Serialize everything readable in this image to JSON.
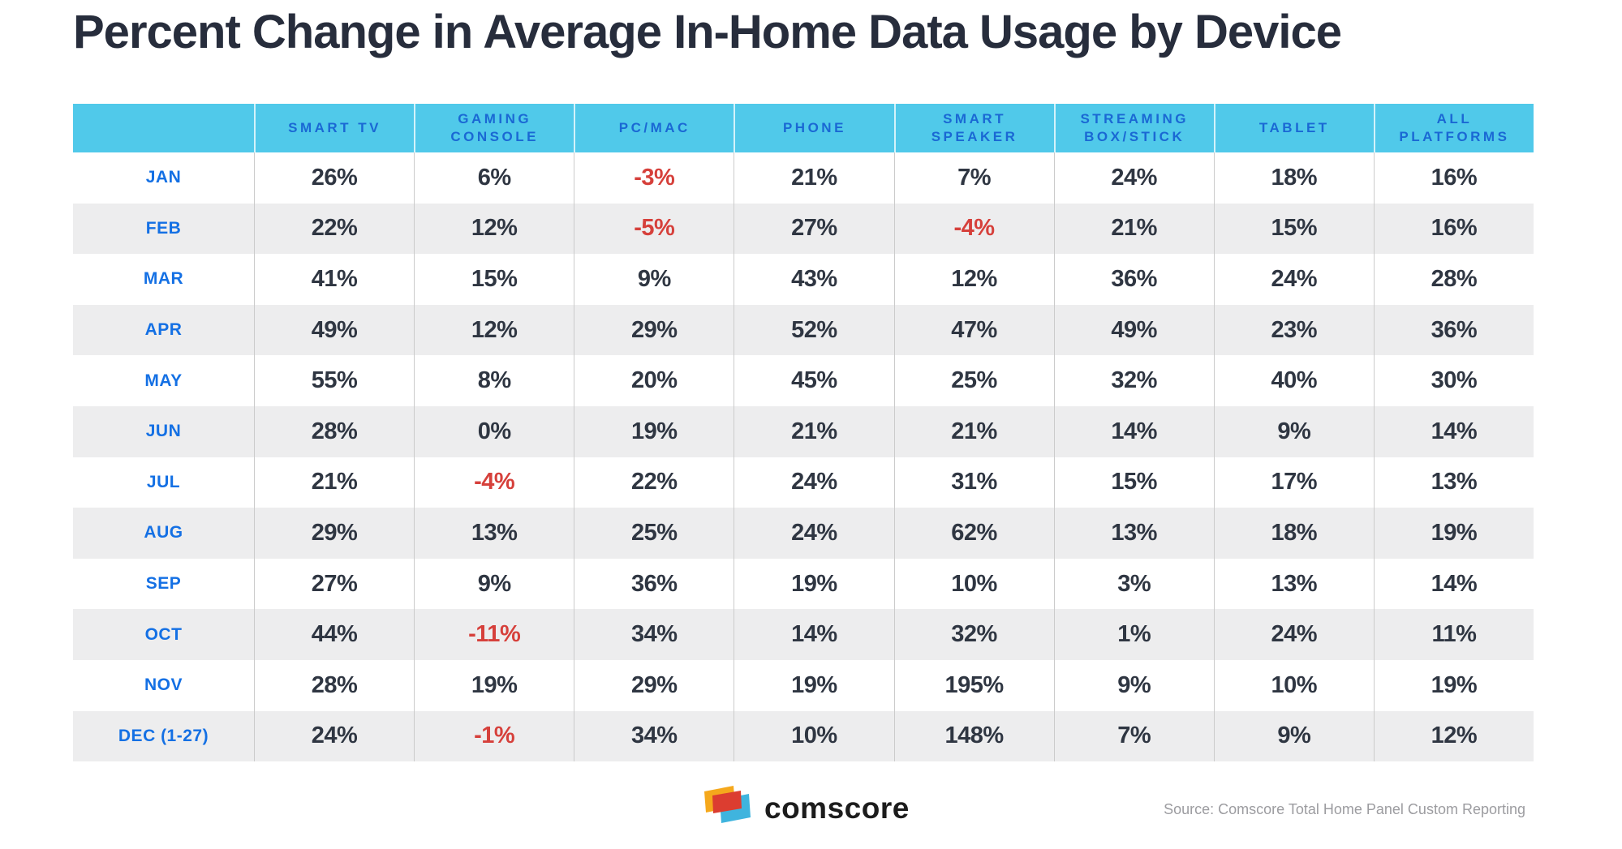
{
  "title": "Percent Change in Average In-Home Data Usage by Device",
  "colors": {
    "header_bg": "#50c9ea",
    "header_text": "#1a68d4",
    "month_text": "#1470e4",
    "value_text": "#2f3642",
    "negative_value": "#d6403b",
    "stripe_row": "#ededee",
    "logo_orange": "#f5a81c",
    "logo_red": "#dc3d30",
    "logo_cyan": "#3fb4de"
  },
  "chart_data": {
    "type": "table",
    "title": "Percent Change in Average In-Home Data Usage by Device",
    "corner_label": "",
    "columns": [
      "SMART TV",
      "GAMING\nCONSOLE",
      "PC/MAC",
      "PHONE",
      "SMART\nSPEAKER",
      "STREAMING\nBOX/STICK",
      "TABLET",
      "ALL\nPLATFORMS"
    ],
    "rows": [
      {
        "month": "JAN",
        "values": [
          "26%",
          "6%",
          "-3%",
          "21%",
          "7%",
          "24%",
          "18%",
          "16%"
        ]
      },
      {
        "month": "FEB",
        "values": [
          "22%",
          "12%",
          "-5%",
          "27%",
          "-4%",
          "21%",
          "15%",
          "16%"
        ]
      },
      {
        "month": "MAR",
        "values": [
          "41%",
          "15%",
          "9%",
          "43%",
          "12%",
          "36%",
          "24%",
          "28%"
        ]
      },
      {
        "month": "APR",
        "values": [
          "49%",
          "12%",
          "29%",
          "52%",
          "47%",
          "49%",
          "23%",
          "36%"
        ]
      },
      {
        "month": "MAY",
        "values": [
          "55%",
          "8%",
          "20%",
          "45%",
          "25%",
          "32%",
          "40%",
          "30%"
        ]
      },
      {
        "month": "JUN",
        "values": [
          "28%",
          "0%",
          "19%",
          "21%",
          "21%",
          "14%",
          "9%",
          "14%"
        ]
      },
      {
        "month": "JUL",
        "values": [
          "21%",
          "-4%",
          "22%",
          "24%",
          "31%",
          "15%",
          "17%",
          "13%"
        ]
      },
      {
        "month": "AUG",
        "values": [
          "29%",
          "13%",
          "25%",
          "24%",
          "62%",
          "13%",
          "18%",
          "19%"
        ]
      },
      {
        "month": "SEP",
        "values": [
          "27%",
          "9%",
          "36%",
          "19%",
          "10%",
          "3%",
          "13%",
          "14%"
        ]
      },
      {
        "month": "OCT",
        "values": [
          "44%",
          "-11%",
          "34%",
          "14%",
          "32%",
          "1%",
          "24%",
          "11%"
        ]
      },
      {
        "month": "NOV",
        "values": [
          "28%",
          "19%",
          "29%",
          "19%",
          "195%",
          "9%",
          "10%",
          "19%"
        ]
      },
      {
        "month": "DEC (1-27)",
        "values": [
          "24%",
          "-1%",
          "34%",
          "10%",
          "148%",
          "7%",
          "9%",
          "12%"
        ]
      }
    ]
  },
  "footer": {
    "brand": "comscore",
    "source": "Source: Comscore Total Home Panel Custom Reporting"
  }
}
